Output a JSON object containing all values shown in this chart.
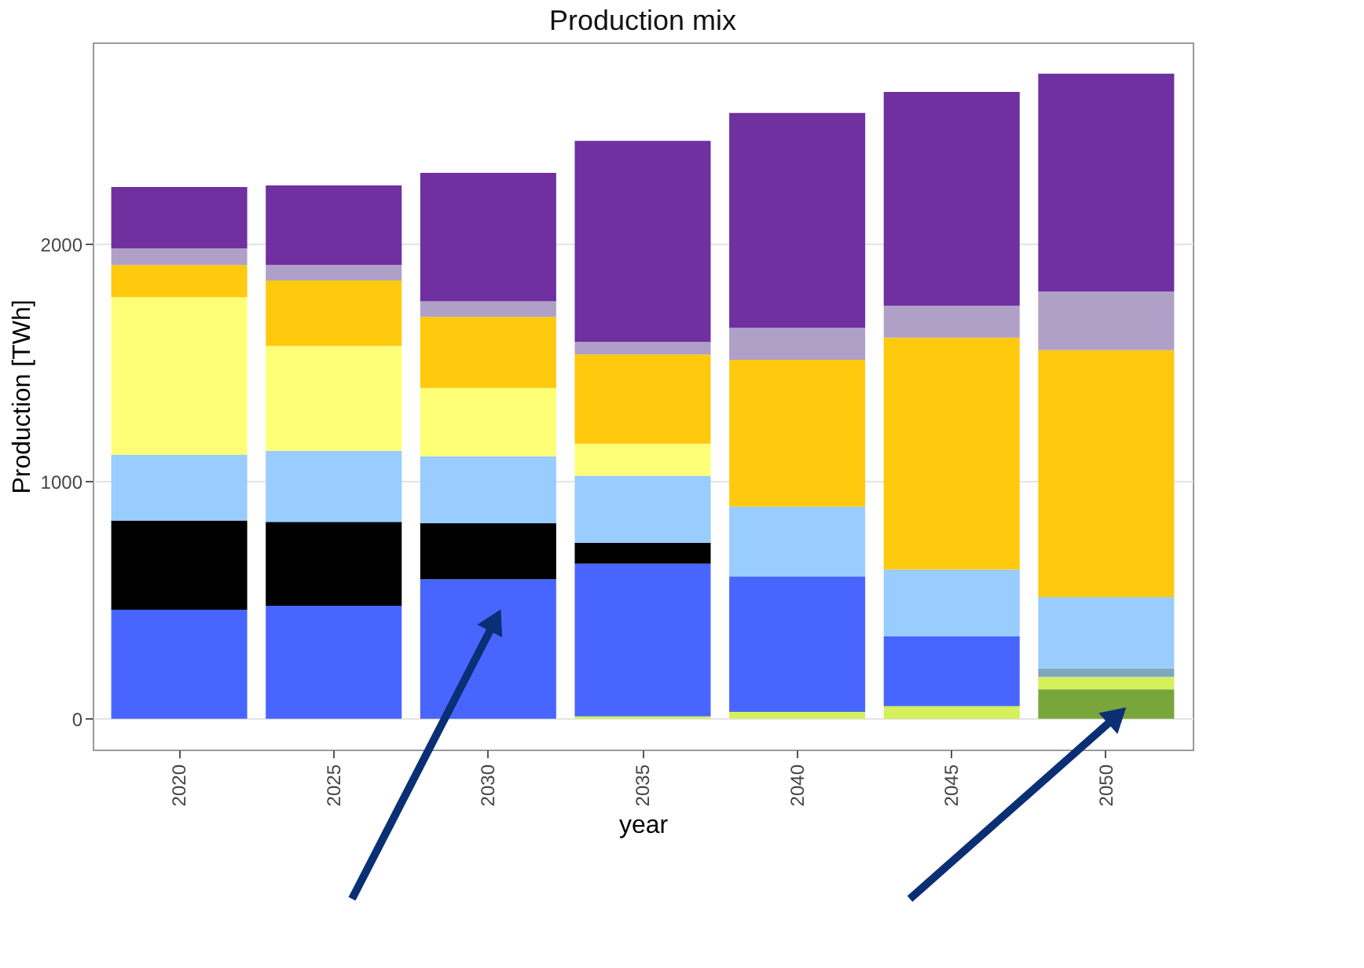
{
  "chart_data": {
    "type": "bar",
    "title": "Production mix",
    "xlabel": "year",
    "ylabel": "Production [TWh]",
    "categories": [
      "2020",
      "2025",
      "2030",
      "2035",
      "2040",
      "2045",
      "2050"
    ],
    "stacked": true,
    "ylim": [
      -130,
      2850
    ],
    "yticks": [
      0,
      1000,
      2000
    ],
    "grid": "y",
    "legend": false,
    "series": [
      {
        "color": "#78a63c",
        "values": [
          0,
          0,
          0,
          0,
          0,
          0,
          124
        ]
      },
      {
        "color": "#d4f05a",
        "values": [
          0,
          0,
          0,
          10,
          29,
          53,
          52
        ]
      },
      {
        "color": "#7fa7bd",
        "values": [
          0,
          0,
          0,
          0,
          0,
          0,
          36
        ]
      },
      {
        "color": "#4866ff",
        "values": [
          459,
          476,
          588,
          643,
          571,
          294,
          0
        ]
      },
      {
        "color": "#000000",
        "values": [
          376,
          353,
          236,
          88,
          0,
          0,
          0
        ]
      },
      {
        "color": "#99ccff",
        "values": [
          277,
          300,
          282,
          283,
          294,
          282,
          300
        ]
      },
      {
        "color": "#ffff77",
        "values": [
          664,
          442,
          288,
          135,
          0,
          0,
          0
        ]
      },
      {
        "color": "#ffc90e",
        "values": [
          136,
          276,
          300,
          376,
          618,
          977,
          1041
        ]
      },
      {
        "color": "#b0a0c8",
        "values": [
          70,
          65,
          65,
          53,
          135,
          135,
          247
        ]
      },
      {
        "color": "#70309f",
        "values": [
          259,
          335,
          541,
          847,
          906,
          900,
          918
        ]
      }
    ]
  }
}
